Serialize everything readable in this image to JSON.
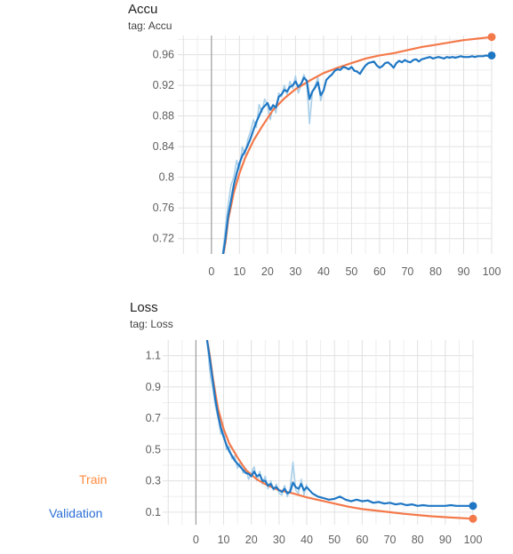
{
  "legend": [
    {
      "label": "Train",
      "color": "#ff8a3d"
    },
    {
      "label": "Validation",
      "color": "#2b6fd6"
    }
  ],
  "chart_data": [
    {
      "type": "line",
      "title": "Accu",
      "subtitle": "tag: Accu",
      "xlim": [
        -12,
        100
      ],
      "ylim": [
        0.7,
        0.985
      ],
      "xticks": [
        0,
        10,
        20,
        30,
        40,
        50,
        60,
        70,
        80,
        90,
        100
      ],
      "yticks": [
        0.72,
        0.76,
        0.8,
        0.84,
        0.88,
        0.92,
        0.96
      ],
      "ytick_labels": [
        "0.72",
        "0.76",
        "0.8",
        "0.84",
        "0.88",
        "0.92",
        "0.96"
      ],
      "grid": true,
      "series": [
        {
          "name": "Train",
          "color": "#f4794a",
          "x": [
            4,
            5,
            6,
            8,
            10,
            12,
            15,
            18,
            22,
            26,
            30,
            35,
            40,
            45,
            50,
            55,
            60,
            65,
            70,
            75,
            80,
            85,
            90,
            95,
            100
          ],
          "y": [
            0.695,
            0.715,
            0.745,
            0.78,
            0.805,
            0.825,
            0.848,
            0.866,
            0.888,
            0.903,
            0.915,
            0.926,
            0.936,
            0.943,
            0.949,
            0.955,
            0.959,
            0.962,
            0.966,
            0.97,
            0.973,
            0.976,
            0.979,
            0.981,
            0.983
          ]
        },
        {
          "name": "Validation",
          "color": "#1f77c4",
          "x": [
            4,
            5,
            6,
            7,
            8,
            9,
            10,
            11,
            12,
            13,
            14,
            15,
            16,
            17,
            18,
            19,
            20,
            21,
            22,
            23,
            24,
            25,
            26,
            27,
            28,
            29,
            30,
            31,
            32,
            33,
            34,
            35,
            36,
            37,
            38,
            39,
            40,
            41,
            42,
            43,
            44,
            45,
            46,
            47,
            48,
            49,
            50,
            51,
            52,
            53,
            54,
            55,
            56,
            57,
            58,
            59,
            60,
            61,
            62,
            63,
            64,
            65,
            66,
            67,
            68,
            69,
            70,
            71,
            72,
            73,
            74,
            75,
            76,
            77,
            78,
            79,
            80,
            81,
            82,
            83,
            84,
            85,
            86,
            87,
            88,
            89,
            90,
            91,
            92,
            93,
            94,
            95,
            96,
            97,
            98,
            99,
            100
          ],
          "y": [
            0.695,
            0.72,
            0.75,
            0.77,
            0.79,
            0.805,
            0.818,
            0.828,
            0.834,
            0.842,
            0.851,
            0.862,
            0.872,
            0.88,
            0.889,
            0.893,
            0.897,
            0.888,
            0.894,
            0.891,
            0.905,
            0.908,
            0.914,
            0.912,
            0.918,
            0.92,
            0.925,
            0.918,
            0.922,
            0.93,
            0.926,
            0.902,
            0.912,
            0.917,
            0.924,
            0.907,
            0.913,
            0.927,
            0.931,
            0.934,
            0.939,
            0.941,
            0.94,
            0.944,
            0.943,
            0.941,
            0.944,
            0.939,
            0.938,
            0.935,
            0.941,
            0.946,
            0.949,
            0.95,
            0.951,
            0.946,
            0.943,
            0.945,
            0.949,
            0.95,
            0.947,
            0.943,
            0.949,
            0.952,
            0.95,
            0.953,
            0.951,
            0.95,
            0.953,
            0.954,
            0.951,
            0.954,
            0.955,
            0.956,
            0.957,
            0.955,
            0.956,
            0.957,
            0.956,
            0.955,
            0.957,
            0.956,
            0.957,
            0.956,
            0.957,
            0.958,
            0.957,
            0.957,
            0.957,
            0.958,
            0.957,
            0.958,
            0.958,
            0.958,
            0.959,
            0.958,
            0.959
          ]
        },
        {
          "name": "Validation (raw)",
          "color": "#a9cfe9",
          "x": [
            4,
            5,
            6,
            7,
            8,
            9,
            10,
            11,
            12,
            13,
            14,
            15,
            16,
            17,
            18,
            19,
            20,
            21,
            22,
            23,
            24,
            25,
            26,
            27,
            28,
            29,
            30,
            31,
            32,
            33,
            34,
            35,
            36,
            37,
            38,
            39,
            40
          ],
          "y": [
            0.7,
            0.735,
            0.765,
            0.79,
            0.8,
            0.822,
            0.81,
            0.84,
            0.83,
            0.85,
            0.86,
            0.875,
            0.865,
            0.895,
            0.885,
            0.902,
            0.894,
            0.875,
            0.895,
            0.884,
            0.91,
            0.905,
            0.92,
            0.908,
            0.925,
            0.916,
            0.932,
            0.91,
            0.92,
            0.934,
            0.925,
            0.87,
            0.91,
            0.92,
            0.93,
            0.9,
            0.915
          ]
        }
      ]
    },
    {
      "type": "line",
      "title": "Loss",
      "subtitle": "tag: Loss",
      "xlim": [
        -12,
        100
      ],
      "ylim": [
        0.02,
        1.2
      ],
      "xticks": [
        0,
        10,
        20,
        30,
        40,
        50,
        60,
        70,
        80,
        90,
        100
      ],
      "yticks": [
        0.1,
        0.3,
        0.5,
        0.7,
        0.9,
        1.1
      ],
      "ytick_labels": [
        "0.1",
        "0.3",
        "0.5",
        "0.7",
        "0.9",
        "1.1"
      ],
      "grid": true,
      "series": [
        {
          "name": "Train",
          "color": "#f4794a",
          "x": [
            4,
            5,
            6,
            7,
            8,
            10,
            12,
            15,
            18,
            22,
            26,
            30,
            35,
            40,
            45,
            50,
            55,
            60,
            65,
            70,
            75,
            80,
            85,
            90,
            95,
            100
          ],
          "y": [
            1.2,
            1.1,
            0.97,
            0.86,
            0.76,
            0.63,
            0.54,
            0.45,
            0.37,
            0.31,
            0.27,
            0.24,
            0.22,
            0.195,
            0.175,
            0.155,
            0.135,
            0.12,
            0.11,
            0.1,
            0.09,
            0.082,
            0.074,
            0.068,
            0.063,
            0.058
          ]
        },
        {
          "name": "Validation",
          "color": "#1f77c4",
          "x": [
            4,
            5,
            6,
            7,
            8,
            9,
            10,
            11,
            12,
            13,
            14,
            15,
            16,
            17,
            18,
            19,
            20,
            21,
            22,
            23,
            24,
            25,
            26,
            27,
            28,
            29,
            30,
            31,
            32,
            33,
            34,
            35,
            36,
            37,
            38,
            39,
            40,
            42,
            44,
            46,
            48,
            50,
            52,
            54,
            56,
            58,
            60,
            62,
            64,
            66,
            68,
            70,
            72,
            74,
            76,
            78,
            80,
            82,
            84,
            86,
            88,
            90,
            92,
            94,
            96,
            98,
            100
          ],
          "y": [
            1.2,
            1.08,
            0.95,
            0.82,
            0.72,
            0.64,
            0.58,
            0.53,
            0.49,
            0.46,
            0.43,
            0.41,
            0.39,
            0.37,
            0.35,
            0.345,
            0.33,
            0.36,
            0.33,
            0.34,
            0.3,
            0.3,
            0.27,
            0.28,
            0.25,
            0.26,
            0.24,
            0.23,
            0.25,
            0.22,
            0.23,
            0.29,
            0.26,
            0.25,
            0.28,
            0.24,
            0.26,
            0.22,
            0.2,
            0.19,
            0.18,
            0.185,
            0.2,
            0.18,
            0.17,
            0.18,
            0.17,
            0.175,
            0.16,
            0.165,
            0.155,
            0.16,
            0.15,
            0.155,
            0.145,
            0.15,
            0.14,
            0.145,
            0.14,
            0.14,
            0.14,
            0.14,
            0.145,
            0.14,
            0.14,
            0.14,
            0.14
          ]
        },
        {
          "name": "Validation (raw)",
          "color": "#a9cfe9",
          "x": [
            4,
            5,
            6,
            7,
            8,
            9,
            10,
            11,
            12,
            13,
            14,
            15,
            16,
            17,
            18,
            19,
            20,
            21,
            22,
            23,
            24,
            25,
            26,
            27,
            28,
            29,
            30,
            31,
            32,
            33,
            34,
            35,
            36,
            37,
            38,
            39,
            40
          ],
          "y": [
            1.2,
            1.0,
            0.9,
            0.78,
            0.7,
            0.6,
            0.63,
            0.5,
            0.52,
            0.44,
            0.46,
            0.38,
            0.42,
            0.35,
            0.38,
            0.31,
            0.35,
            0.39,
            0.3,
            0.36,
            0.28,
            0.33,
            0.25,
            0.3,
            0.24,
            0.28,
            0.22,
            0.21,
            0.27,
            0.2,
            0.25,
            0.42,
            0.24,
            0.22,
            0.31,
            0.21,
            0.28
          ]
        }
      ]
    }
  ]
}
